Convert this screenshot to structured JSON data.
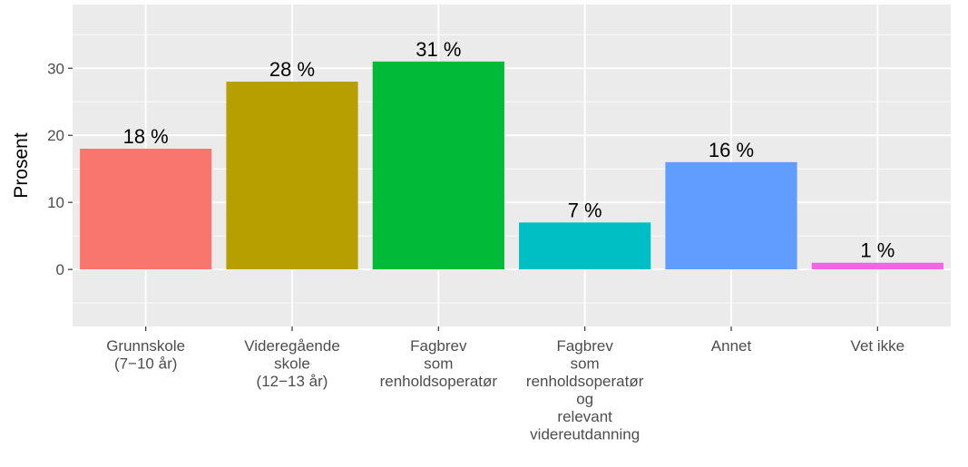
{
  "chart_data": {
    "type": "bar",
    "ylabel": "Prosent",
    "xlabel": "",
    "ylim": [
      -8.5,
      39.5
    ],
    "yticks": [
      0,
      10,
      20,
      30
    ],
    "grid": true,
    "categories": [
      [
        "Grunnskole",
        "(7−10 år)"
      ],
      [
        "Videregående",
        "skole",
        "(12−13 år)"
      ],
      [
        "Fagbrev",
        "som",
        "renholdsoperatør"
      ],
      [
        "Fagbrev",
        "som",
        "renholdsoperatør",
        "og",
        "relevant",
        "videreutdanning"
      ],
      [
        "Annet"
      ],
      [
        "Vet ikke"
      ]
    ],
    "values": [
      18,
      28,
      31,
      7,
      16,
      1
    ],
    "data_labels": [
      "18 %",
      "28 %",
      "31 %",
      "7 %",
      "16 %",
      "1 %"
    ],
    "colors": [
      "#F8766D",
      "#B79F00",
      "#00BA38",
      "#00BFC4",
      "#619CFF",
      "#F564E3"
    ],
    "panel_background": "#EBEBEB",
    "grid_color": "#FFFFFF"
  }
}
